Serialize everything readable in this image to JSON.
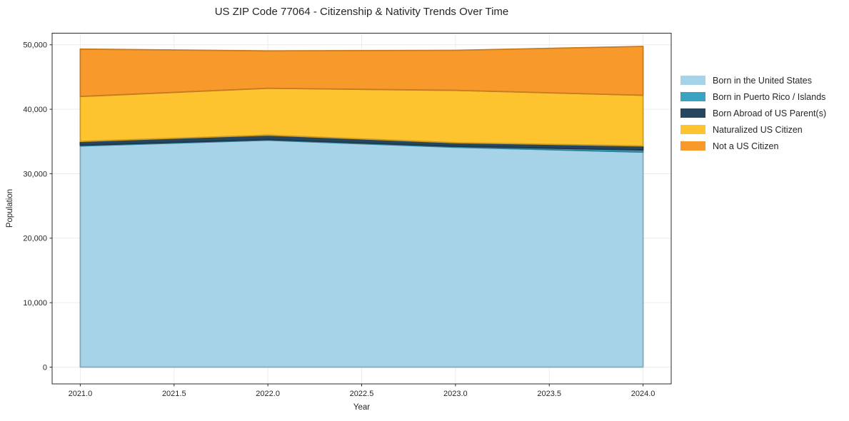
{
  "chart_data": {
    "type": "area",
    "stacked": true,
    "title": "US ZIP Code 77064 - Citizenship & Nativity Trends Over Time",
    "xlabel": "Year",
    "ylabel": "Population",
    "x": [
      2021,
      2022,
      2023,
      2024
    ],
    "series": [
      {
        "name": "Born in the United States",
        "color": "#a7d3e8",
        "values": [
          34300,
          35200,
          34100,
          33350
        ]
      },
      {
        "name": "Born in Puerto Rico / Islands",
        "color": "#3ba3c2",
        "values": [
          120,
          110,
          160,
          330
        ]
      },
      {
        "name": "Born Abroad of US Parent(s)",
        "color": "#27455c",
        "values": [
          590,
          680,
          550,
          630
        ]
      },
      {
        "name": "Naturalized US Citizen",
        "color": "#fdc42f",
        "values": [
          6970,
          7270,
          8120,
          7860
        ]
      },
      {
        "name": "Not a US Citizen",
        "color": "#f8992b",
        "values": [
          7350,
          5790,
          6210,
          7580
        ]
      }
    ],
    "xticks": [
      2021.0,
      2021.5,
      2022.0,
      2022.5,
      2023.0,
      2023.5,
      2024.0
    ],
    "xtick_labels": [
      "2021.0",
      "2021.5",
      "2022.0",
      "2022.5",
      "2023.0",
      "2023.5",
      "2024.0"
    ],
    "yticks": [
      0,
      10000,
      20000,
      30000,
      40000,
      50000
    ],
    "ytick_labels": [
      "0",
      "10,000",
      "20,000",
      "30,000",
      "40,000",
      "50,000"
    ],
    "xlim": [
      2020.85,
      2024.15
    ],
    "ylim": [
      -2600,
      51800
    ],
    "grid": true,
    "legend_position": "right of plot, no frame"
  }
}
